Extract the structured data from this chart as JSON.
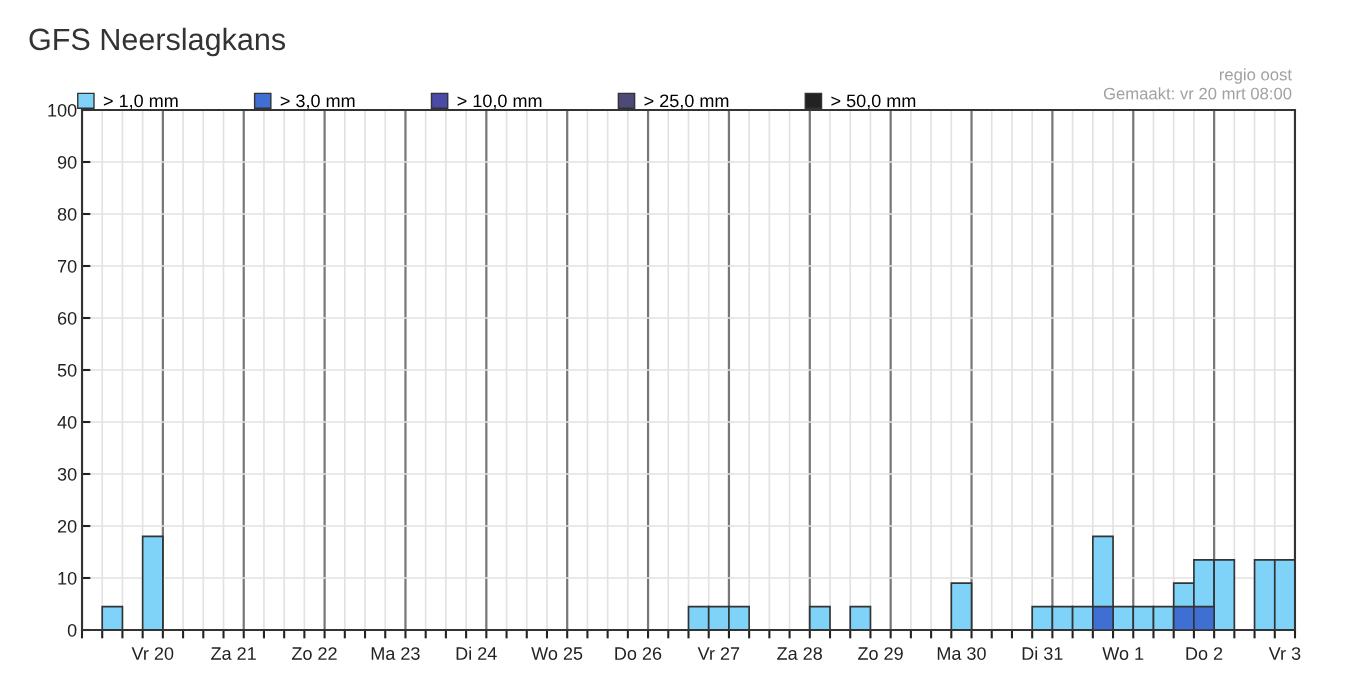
{
  "chart_data": {
    "type": "bar",
    "title": "GFS Neerslagkans",
    "annotations": [
      "regio oost",
      "Gemaakt: vr 20 mrt 08:00"
    ],
    "categories": [
      null,
      null,
      null,
      "Vr 20",
      null,
      null,
      null,
      "Za 21",
      null,
      null,
      null,
      "Zo 22",
      null,
      null,
      null,
      "Ma 23",
      null,
      null,
      null,
      "Di 24",
      null,
      null,
      null,
      "Wo 25",
      null,
      null,
      null,
      "Do 26",
      null,
      null,
      null,
      "Vr 27",
      null,
      null,
      null,
      "Za 28",
      null,
      null,
      null,
      "Zo 29",
      null,
      null,
      null,
      "Ma 30",
      null,
      null,
      null,
      "Di 31",
      null,
      null,
      null,
      "Wo 1",
      null,
      null,
      null,
      "Do 2",
      null,
      null,
      null,
      "Vr 3"
    ],
    "series": [
      {
        "name": "> 1,0 mm",
        "color": "#7fd2f8",
        "values": [
          null,
          4.5,
          null,
          18,
          null,
          null,
          null,
          null,
          null,
          null,
          null,
          null,
          null,
          null,
          null,
          null,
          null,
          null,
          null,
          null,
          null,
          null,
          null,
          null,
          null,
          null,
          null,
          null,
          null,
          null,
          4.5,
          4.5,
          4.5,
          null,
          null,
          null,
          4.5,
          null,
          4.5,
          null,
          null,
          null,
          null,
          9,
          null,
          null,
          null,
          4.5,
          4.5,
          4.5,
          18,
          4.5,
          4.5,
          4.5,
          9,
          13.5,
          13.5,
          null,
          13.5,
          13.5
        ]
      },
      {
        "name": "> 3,0 mm",
        "color": "#3f6fd2",
        "values": [
          null,
          null,
          null,
          null,
          null,
          null,
          null,
          null,
          null,
          null,
          null,
          null,
          null,
          null,
          null,
          null,
          null,
          null,
          null,
          null,
          null,
          null,
          null,
          null,
          null,
          null,
          null,
          null,
          null,
          null,
          null,
          null,
          null,
          null,
          null,
          null,
          null,
          null,
          null,
          null,
          null,
          null,
          null,
          null,
          null,
          null,
          null,
          null,
          null,
          null,
          4.5,
          null,
          null,
          null,
          4.5,
          4.5,
          null,
          null,
          null,
          null
        ]
      },
      {
        "name": "> 10,0 mm",
        "color": "#4a4aa8",
        "values": [
          null,
          null,
          null,
          null,
          null,
          null,
          null,
          null,
          null,
          null,
          null,
          null,
          null,
          null,
          null,
          null,
          null,
          null,
          null,
          null,
          null,
          null,
          null,
          null,
          null,
          null,
          null,
          null,
          null,
          null,
          null,
          null,
          null,
          null,
          null,
          null,
          null,
          null,
          null,
          null,
          null,
          null,
          null,
          null,
          null,
          null,
          null,
          null,
          null,
          null,
          null,
          null,
          null,
          null,
          null,
          null,
          null,
          null,
          null,
          null
        ]
      },
      {
        "name": "> 25,0 mm",
        "color": "#4e4a78",
        "values": [
          null,
          null,
          null,
          null,
          null,
          null,
          null,
          null,
          null,
          null,
          null,
          null,
          null,
          null,
          null,
          null,
          null,
          null,
          null,
          null,
          null,
          null,
          null,
          null,
          null,
          null,
          null,
          null,
          null,
          null,
          null,
          null,
          null,
          null,
          null,
          null,
          null,
          null,
          null,
          null,
          null,
          null,
          null,
          null,
          null,
          null,
          null,
          null,
          null,
          null,
          null,
          null,
          null,
          null,
          null,
          null,
          null,
          null,
          null,
          null
        ]
      },
      {
        "name": "> 50,0 mm",
        "color": "#222222",
        "values": [
          null,
          null,
          null,
          null,
          null,
          null,
          null,
          null,
          null,
          null,
          null,
          null,
          null,
          null,
          null,
          null,
          null,
          null,
          null,
          null,
          null,
          null,
          null,
          null,
          null,
          null,
          null,
          null,
          null,
          null,
          null,
          null,
          null,
          null,
          null,
          null,
          null,
          null,
          null,
          null,
          null,
          null,
          null,
          null,
          null,
          null,
          null,
          null,
          null,
          null,
          null,
          null,
          null,
          null,
          null,
          null,
          null,
          null,
          null,
          null
        ]
      }
    ],
    "ylim": [
      0,
      100
    ],
    "yticks": [
      0,
      10,
      20,
      30,
      40,
      50,
      60,
      70,
      80,
      90,
      100
    ],
    "grid": true,
    "legend": "top left"
  }
}
